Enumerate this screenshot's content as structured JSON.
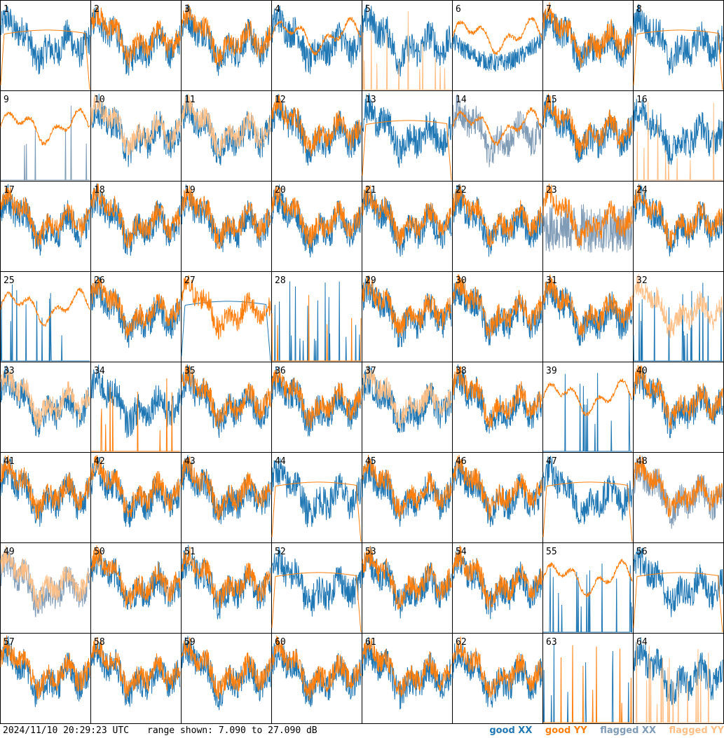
{
  "footer": {
    "timestamp": "2024/11/10 20:29:23 UTC",
    "range_text": "range shown: 7.090 to 27.090 dB"
  },
  "legend": {
    "items": [
      {
        "label": "good XX",
        "color": "#1f77b4"
      },
      {
        "label": "good YY",
        "color": "#ff7f0e"
      },
      {
        "label": "flagged XX",
        "color": "#7f9bb6"
      },
      {
        "label": "flagged YY",
        "color": "#ffbf87"
      }
    ]
  },
  "chart_data": {
    "type": "line",
    "layout": "8x8 small multiples",
    "x": "channel index (no axis labels printed)",
    "ylim": [
      7.09,
      27.09
    ],
    "yunit": "dB",
    "grid": false,
    "legend_position": "bottom-right",
    "colors": {
      "good_xx": "#1f77b4",
      "good_yy": "#ff7f0e",
      "flagged_xx": "#7f9bb6",
      "flagged_yy": "#ffbf87"
    },
    "panels": [
      {
        "label": "1",
        "xx": "good",
        "yy": "good",
        "xx_shape": "noisy",
        "yy_shape": "smooth-dome"
      },
      {
        "label": "2",
        "xx": "good",
        "yy": "good",
        "xx_shape": "noisy",
        "yy_shape": "noisy"
      },
      {
        "label": "3",
        "xx": "good",
        "yy": "good",
        "xx_shape": "noisy",
        "yy_shape": "noisy"
      },
      {
        "label": "4",
        "xx": "good",
        "yy": "good",
        "xx_shape": "noisy",
        "yy_shape": "smooth"
      },
      {
        "label": "5",
        "xx": "good",
        "yy": "flagged",
        "xx_shape": "noisy",
        "yy_shape": "spikes"
      },
      {
        "label": "6",
        "xx": "good",
        "yy": "good",
        "xx_shape": "noisy-dip",
        "yy_shape": "smooth"
      },
      {
        "label": "7",
        "xx": "good",
        "yy": "good",
        "xx_shape": "noisy",
        "yy_shape": "noisy"
      },
      {
        "label": "8",
        "xx": "good",
        "yy": "good",
        "xx_shape": "noisy",
        "yy_shape": "smooth-dome"
      },
      {
        "label": "9",
        "xx": "flagged",
        "yy": "good",
        "xx_shape": "spikes",
        "yy_shape": "smooth"
      },
      {
        "label": "10",
        "xx": "good",
        "yy": "flagged",
        "xx_shape": "noisy",
        "yy_shape": "noisy"
      },
      {
        "label": "11",
        "xx": "good",
        "yy": "flagged",
        "xx_shape": "noisy",
        "yy_shape": "noisy"
      },
      {
        "label": "12",
        "xx": "good",
        "yy": "good",
        "xx_shape": "noisy",
        "yy_shape": "noisy"
      },
      {
        "label": "13",
        "xx": "good",
        "yy": "good",
        "xx_shape": "noisy",
        "yy_shape": "smooth-dome"
      },
      {
        "label": "14",
        "xx": "flagged",
        "yy": "good",
        "xx_shape": "noisy",
        "yy_shape": "smooth"
      },
      {
        "label": "15",
        "xx": "good",
        "yy": "good",
        "xx_shape": "noisy",
        "yy_shape": "noisy"
      },
      {
        "label": "16",
        "xx": "good",
        "yy": "flagged",
        "xx_shape": "noisy",
        "yy_shape": "spikes"
      },
      {
        "label": "17",
        "xx": "good",
        "yy": "good",
        "xx_shape": "noisy",
        "yy_shape": "noisy"
      },
      {
        "label": "18",
        "xx": "good",
        "yy": "good",
        "xx_shape": "noisy",
        "yy_shape": "noisy"
      },
      {
        "label": "19",
        "xx": "good",
        "yy": "good",
        "xx_shape": "noisy",
        "yy_shape": "noisy"
      },
      {
        "label": "20",
        "xx": "good",
        "yy": "good",
        "xx_shape": "noisy",
        "yy_shape": "noisy"
      },
      {
        "label": "21",
        "xx": "good",
        "yy": "good",
        "xx_shape": "noisy",
        "yy_shape": "noisy"
      },
      {
        "label": "22",
        "xx": "good",
        "yy": "good",
        "xx_shape": "noisy",
        "yy_shape": "noisy"
      },
      {
        "label": "23",
        "xx": "flagged",
        "yy": "good",
        "xx_shape": "noisy-low",
        "yy_shape": "noisy"
      },
      {
        "label": "24",
        "xx": "good",
        "yy": "good",
        "xx_shape": "noisy",
        "yy_shape": "noisy"
      },
      {
        "label": "25",
        "xx": "good",
        "yy": "good",
        "xx_shape": "spikes",
        "yy_shape": "smooth"
      },
      {
        "label": "26",
        "xx": "good",
        "yy": "good",
        "xx_shape": "noisy",
        "yy_shape": "noisy"
      },
      {
        "label": "27",
        "xx": "good",
        "yy": "good",
        "xx_shape": "smooth-dome",
        "yy_shape": "noisy"
      },
      {
        "label": "28",
        "xx": "good",
        "yy": "good",
        "xx_shape": "spikes",
        "yy_shape": "spikes"
      },
      {
        "label": "29",
        "xx": "good",
        "yy": "good",
        "xx_shape": "noisy",
        "yy_shape": "noisy"
      },
      {
        "label": "30",
        "xx": "good",
        "yy": "good",
        "xx_shape": "noisy",
        "yy_shape": "noisy"
      },
      {
        "label": "31",
        "xx": "good",
        "yy": "good",
        "xx_shape": "noisy",
        "yy_shape": "noisy"
      },
      {
        "label": "32",
        "xx": "good",
        "yy": "flagged",
        "xx_shape": "spikes",
        "yy_shape": "noisy"
      },
      {
        "label": "33",
        "xx": "good",
        "yy": "flagged",
        "xx_shape": "noisy",
        "yy_shape": "noisy"
      },
      {
        "label": "34",
        "xx": "good",
        "yy": "good",
        "xx_shape": "noisy",
        "yy_shape": "spikes"
      },
      {
        "label": "35",
        "xx": "good",
        "yy": "good",
        "xx_shape": "noisy",
        "yy_shape": "noisy"
      },
      {
        "label": "36",
        "xx": "good",
        "yy": "good",
        "xx_shape": "noisy",
        "yy_shape": "noisy"
      },
      {
        "label": "37",
        "xx": "good",
        "yy": "flagged",
        "xx_shape": "noisy",
        "yy_shape": "noisy"
      },
      {
        "label": "38",
        "xx": "good",
        "yy": "good",
        "xx_shape": "noisy",
        "yy_shape": "noisy"
      },
      {
        "label": "39",
        "xx": "good",
        "yy": "good",
        "xx_shape": "spikes",
        "yy_shape": "smooth"
      },
      {
        "label": "40",
        "xx": "good",
        "yy": "good",
        "xx_shape": "noisy",
        "yy_shape": "noisy"
      },
      {
        "label": "41",
        "xx": "good",
        "yy": "good",
        "xx_shape": "noisy",
        "yy_shape": "noisy"
      },
      {
        "label": "42",
        "xx": "good",
        "yy": "good",
        "xx_shape": "noisy",
        "yy_shape": "noisy"
      },
      {
        "label": "43",
        "xx": "good",
        "yy": "good",
        "xx_shape": "noisy",
        "yy_shape": "noisy"
      },
      {
        "label": "44",
        "xx": "good",
        "yy": "good",
        "xx_shape": "noisy",
        "yy_shape": "smooth-dome"
      },
      {
        "label": "45",
        "xx": "good",
        "yy": "good",
        "xx_shape": "noisy",
        "yy_shape": "noisy"
      },
      {
        "label": "46",
        "xx": "good",
        "yy": "good",
        "xx_shape": "noisy",
        "yy_shape": "noisy"
      },
      {
        "label": "47",
        "xx": "good",
        "yy": "good",
        "xx_shape": "noisy",
        "yy_shape": "smooth-dome"
      },
      {
        "label": "48",
        "xx": "flagged",
        "yy": "good",
        "xx_shape": "noisy",
        "yy_shape": "noisy"
      },
      {
        "label": "49",
        "xx": "flagged",
        "yy": "flagged",
        "xx_shape": "noisy",
        "yy_shape": "noisy"
      },
      {
        "label": "50",
        "xx": "good",
        "yy": "good",
        "xx_shape": "noisy",
        "yy_shape": "noisy"
      },
      {
        "label": "51",
        "xx": "good",
        "yy": "good",
        "xx_shape": "noisy",
        "yy_shape": "noisy"
      },
      {
        "label": "52",
        "xx": "good",
        "yy": "good",
        "xx_shape": "noisy",
        "yy_shape": "smooth-dome"
      },
      {
        "label": "53",
        "xx": "good",
        "yy": "good",
        "xx_shape": "noisy",
        "yy_shape": "noisy"
      },
      {
        "label": "54",
        "xx": "good",
        "yy": "good",
        "xx_shape": "noisy",
        "yy_shape": "noisy"
      },
      {
        "label": "55",
        "xx": "good",
        "yy": "good",
        "xx_shape": "spikes",
        "yy_shape": "smooth"
      },
      {
        "label": "56",
        "xx": "good",
        "yy": "good",
        "xx_shape": "noisy",
        "yy_shape": "smooth-dome"
      },
      {
        "label": "57",
        "xx": "good",
        "yy": "good",
        "xx_shape": "noisy",
        "yy_shape": "noisy"
      },
      {
        "label": "58",
        "xx": "good",
        "yy": "good",
        "xx_shape": "noisy",
        "yy_shape": "noisy"
      },
      {
        "label": "59",
        "xx": "good",
        "yy": "good",
        "xx_shape": "noisy",
        "yy_shape": "noisy"
      },
      {
        "label": "60",
        "xx": "good",
        "yy": "good",
        "xx_shape": "noisy",
        "yy_shape": "noisy"
      },
      {
        "label": "61",
        "xx": "good",
        "yy": "good",
        "xx_shape": "noisy",
        "yy_shape": "noisy"
      },
      {
        "label": "62",
        "xx": "good",
        "yy": "good",
        "xx_shape": "noisy",
        "yy_shape": "noisy"
      },
      {
        "label": "63",
        "xx": "good",
        "yy": "good",
        "xx_shape": "spikes",
        "yy_shape": "spikes"
      },
      {
        "label": "64",
        "xx": "good",
        "yy": "flagged",
        "xx_shape": "noisy",
        "yy_shape": "spikes"
      }
    ]
  }
}
